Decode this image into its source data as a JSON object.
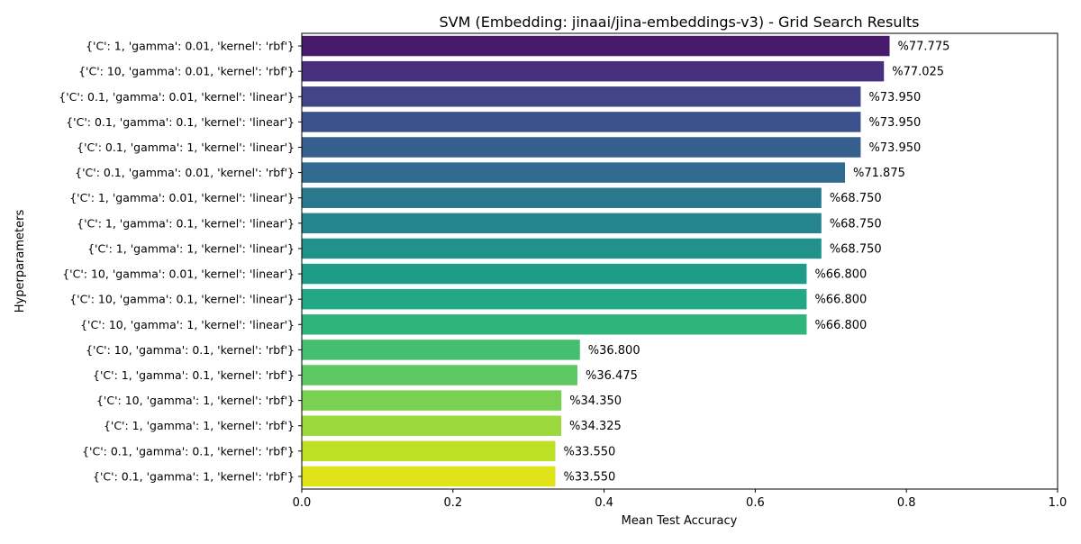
{
  "chart_data": {
    "type": "bar",
    "orientation": "horizontal",
    "title": "SVM (Embedding: jinaai/jina-embeddings-v3) - Grid Search Results",
    "xlabel": "Mean Test Accuracy",
    "ylabel": "Hyperparameters",
    "xlim": [
      0,
      1.0
    ],
    "xticks": [
      "0.0",
      "0.2",
      "0.4",
      "0.6",
      "0.8",
      "1.0"
    ],
    "grid": false,
    "colormap": "viridis",
    "categories": [
      "{'C': 1, 'gamma': 0.01, 'kernel': 'rbf'}",
      "{'C': 10, 'gamma': 0.01, 'kernel': 'rbf'}",
      "{'C': 0.1, 'gamma': 0.01, 'kernel': 'linear'}",
      "{'C': 0.1, 'gamma': 0.1, 'kernel': 'linear'}",
      "{'C': 0.1, 'gamma': 1, 'kernel': 'linear'}",
      "{'C': 0.1, 'gamma': 0.01, 'kernel': 'rbf'}",
      "{'C': 1, 'gamma': 0.01, 'kernel': 'linear'}",
      "{'C': 1, 'gamma': 0.1, 'kernel': 'linear'}",
      "{'C': 1, 'gamma': 1, 'kernel': 'linear'}",
      "{'C': 10, 'gamma': 0.01, 'kernel': 'linear'}",
      "{'C': 10, 'gamma': 0.1, 'kernel': 'linear'}",
      "{'C': 10, 'gamma': 1, 'kernel': 'linear'}",
      "{'C': 10, 'gamma': 0.1, 'kernel': 'rbf'}",
      "{'C': 1, 'gamma': 0.1, 'kernel': 'rbf'}",
      "{'C': 10, 'gamma': 1, 'kernel': 'rbf'}",
      "{'C': 1, 'gamma': 1, 'kernel': 'rbf'}",
      "{'C': 0.1, 'gamma': 0.1, 'kernel': 'rbf'}",
      "{'C': 0.1, 'gamma': 1, 'kernel': 'rbf'}"
    ],
    "values": [
      0.77775,
      0.77025,
      0.7395,
      0.7395,
      0.7395,
      0.71875,
      0.6875,
      0.6875,
      0.6875,
      0.668,
      0.668,
      0.668,
      0.368,
      0.36475,
      0.3435,
      0.34325,
      0.3355,
      0.3355
    ],
    "data_labels": [
      "%77.775",
      "%77.025",
      "%73.950",
      "%73.950",
      "%73.950",
      "%71.875",
      "%68.750",
      "%68.750",
      "%68.750",
      "%66.800",
      "%66.800",
      "%66.800",
      "%36.800",
      "%36.475",
      "%34.350",
      "%34.325",
      "%33.550",
      "%33.550"
    ],
    "colors": [
      "#481a6c",
      "#472f7d",
      "#414487",
      "#3b518b",
      "#355f8d",
      "#306a8e",
      "#2a788e",
      "#25848e",
      "#21918c",
      "#1e9c89",
      "#22a884",
      "#2fb47c",
      "#44bf70",
      "#5ec962",
      "#7ad151",
      "#9bd93c",
      "#bddf26",
      "#dfe318"
    ]
  }
}
